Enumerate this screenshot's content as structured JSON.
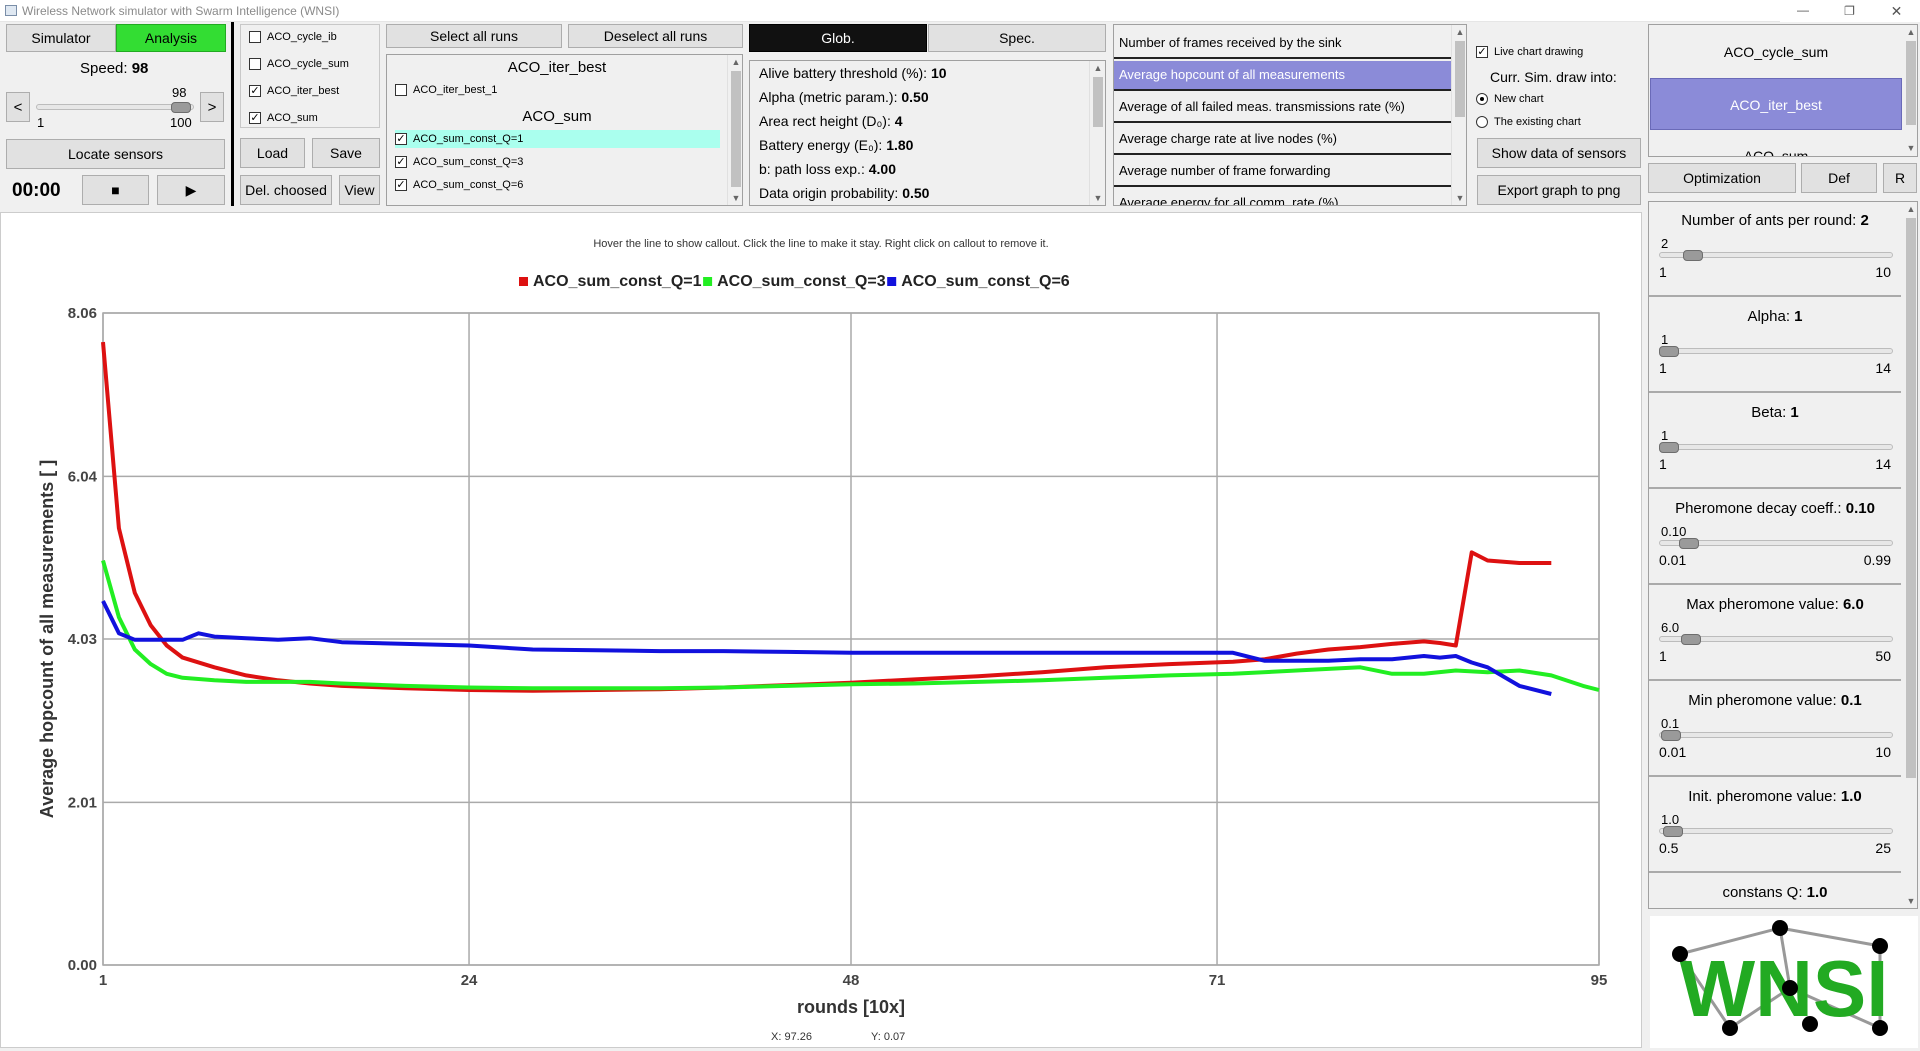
{
  "window": {
    "title": "Wireless Network simulator with Swarm Intelligence (WNSI)"
  },
  "tabs": {
    "simulator": "Simulator",
    "analysis": "Analysis"
  },
  "speed": {
    "label": "Speed:",
    "value": "98",
    "current": "98",
    "min": "1",
    "max": "100",
    "level": 0.98,
    "dec": "<",
    "inc": ">"
  },
  "buttons": {
    "locate": "Locate sensors",
    "timer": "00:00",
    "stop": "■",
    "play": "▶",
    "load": "Load",
    "save": "Save",
    "delete": "Del. choosed",
    "view": "View",
    "select_all": "Select all runs",
    "deselect_all": "Deselect all runs",
    "glob": "Glob.",
    "spec": "Spec.",
    "show_data": "Show data of sensors",
    "export": "Export graph to png",
    "optimization": "Optimization",
    "def": "Def",
    "r": "R"
  },
  "algo_checks": [
    {
      "label": "ACO_cycle_ib",
      "checked": false
    },
    {
      "label": "ACO_cycle_sum",
      "checked": false
    },
    {
      "label": "ACO_iter_best",
      "checked": true
    },
    {
      "label": "ACO_sum",
      "checked": true
    }
  ],
  "runs": {
    "groups": [
      {
        "header": "ACO_iter_best",
        "items": [
          {
            "label": "ACO_iter_best_1",
            "checked": false,
            "highlight": false
          }
        ]
      },
      {
        "header": "ACO_sum",
        "items": [
          {
            "label": "ACO_sum_const_Q=1",
            "checked": true,
            "highlight": true
          },
          {
            "label": "ACO_sum_const_Q=3",
            "checked": true,
            "highlight": false
          },
          {
            "label": "ACO_sum_const_Q=6",
            "checked": true,
            "highlight": false
          }
        ]
      }
    ]
  },
  "params": [
    {
      "name": "Alive battery threshold (%): ",
      "value": "10"
    },
    {
      "name": "Alpha (metric param.): ",
      "value": "0.50"
    },
    {
      "name": "Area rect height (D₀): ",
      "value": "4"
    },
    {
      "name": "Battery energy (E₀): ",
      "value": "1.80"
    },
    {
      "name": "b: path loss exp.: ",
      "value": "4.00"
    },
    {
      "name": "Data origin probability: ",
      "value": "0.50"
    }
  ],
  "measurements": [
    {
      "label": "Number of frames received by the sink",
      "selected": false
    },
    {
      "label": "Average hopcount of all measurements",
      "selected": true
    },
    {
      "label": "Average of all failed meas. transmissions rate (%)",
      "selected": false
    },
    {
      "label": "Average charge rate at live nodes (%)",
      "selected": false
    },
    {
      "label": "Average number of frame forwarding",
      "selected": false
    },
    {
      "label": "Average energy for all comm. rate (%)",
      "selected": false
    }
  ],
  "chart_opts": {
    "live": "Live chart drawing",
    "live_checked": true,
    "draw_into": "Curr. Sim. draw into:",
    "new_chart": "New chart",
    "existing": "The existing chart",
    "selected": "new"
  },
  "algo_list": [
    {
      "label": "ACO_cycle_sum",
      "selected": false
    },
    {
      "label": "ACO_iter_best",
      "selected": true
    },
    {
      "label": "ACO_sum",
      "selected": false
    }
  ],
  "right_params": [
    {
      "title": "Number of ants per round: ",
      "value": "2",
      "cur": "2",
      "min": "1",
      "max": "10",
      "level": 0.111
    },
    {
      "title": "Alpha: ",
      "value": "1",
      "cur": "1",
      "min": "1",
      "max": "14",
      "level": 0
    },
    {
      "title": "Beta: ",
      "value": "1",
      "cur": "1",
      "min": "1",
      "max": "14",
      "level": 0
    },
    {
      "title": "Pheromone decay coeff.: ",
      "value": "0.10",
      "cur": "0.10",
      "min": "0.01",
      "max": "0.99",
      "level": 0.092
    },
    {
      "title": "Max pheromone value: ",
      "value": "6.0",
      "cur": "6.0",
      "min": "1",
      "max": "50",
      "level": 0.102
    },
    {
      "title": "Min pheromone value: ",
      "value": "0.1",
      "cur": "0.1",
      "min": "0.01",
      "max": "10",
      "level": 0.009
    },
    {
      "title": "Init. pheromone value: ",
      "value": "1.0",
      "cur": "1.0",
      "min": "0.5",
      "max": "25",
      "level": 0.02
    },
    {
      "title": "constans Q: ",
      "value": "1.0"
    }
  ],
  "logo": {
    "text": "WNSI",
    "color": "#22aa22"
  },
  "chart_data": {
    "type": "line",
    "hint": "Hover the line to show callout. Click the line to make it stay. Right click on callout to remove it.",
    "xlabel": "rounds [10x]",
    "ylabel": "Average hopcount of all measurements [ ]",
    "xlim": [
      1,
      95
    ],
    "ylim": [
      0,
      8.06
    ],
    "xticks": [
      "1",
      "24",
      "48",
      "71",
      "95"
    ],
    "yticks": [
      "0.00",
      "2.01",
      "4.03",
      "6.04",
      "8.06"
    ],
    "grid": true,
    "legend": "top-center",
    "cursor": {
      "x": "X: 97.26",
      "y": "Y: 0.07"
    },
    "series": [
      {
        "name": "ACO_sum_const_Q=1",
        "color": "#dd1111",
        "x": [
          1,
          2,
          3,
          4,
          5,
          6,
          8,
          10,
          12,
          14,
          16,
          20,
          24,
          28,
          32,
          36,
          40,
          44,
          48,
          52,
          56,
          60,
          64,
          68,
          72,
          74,
          76,
          78,
          80,
          82,
          84,
          85,
          86,
          87,
          88,
          90,
          92
        ],
        "y": [
          7.7,
          5.4,
          4.6,
          4.2,
          3.95,
          3.8,
          3.68,
          3.58,
          3.52,
          3.48,
          3.45,
          3.42,
          3.4,
          3.39,
          3.4,
          3.41,
          3.43,
          3.46,
          3.49,
          3.53,
          3.57,
          3.62,
          3.68,
          3.72,
          3.75,
          3.78,
          3.85,
          3.9,
          3.93,
          3.97,
          4.0,
          3.98,
          3.95,
          5.1,
          5.0,
          4.97,
          4.97
        ]
      },
      {
        "name": "ACO_sum_const_Q=3",
        "color": "#22ee22",
        "x": [
          1,
          2,
          3,
          4,
          5,
          6,
          8,
          10,
          12,
          14,
          16,
          20,
          24,
          28,
          32,
          36,
          40,
          44,
          48,
          52,
          56,
          60,
          64,
          68,
          72,
          76,
          80,
          82,
          84,
          86,
          88,
          90,
          92,
          94,
          95
        ],
        "y": [
          5.0,
          4.3,
          3.9,
          3.72,
          3.6,
          3.55,
          3.52,
          3.5,
          3.5,
          3.5,
          3.48,
          3.45,
          3.43,
          3.42,
          3.42,
          3.42,
          3.43,
          3.45,
          3.47,
          3.48,
          3.5,
          3.52,
          3.55,
          3.58,
          3.6,
          3.64,
          3.68,
          3.6,
          3.6,
          3.64,
          3.62,
          3.64,
          3.58,
          3.45,
          3.4
        ]
      },
      {
        "name": "ACO_sum_const_Q=6",
        "color": "#1111dd",
        "x": [
          1,
          2,
          3,
          4,
          5,
          6,
          7,
          8,
          10,
          12,
          14,
          16,
          20,
          24,
          28,
          32,
          36,
          40,
          44,
          48,
          52,
          56,
          60,
          64,
          68,
          72,
          74,
          76,
          78,
          80,
          82,
          84,
          85,
          86,
          87,
          88,
          90,
          92
        ],
        "y": [
          4.5,
          4.1,
          4.02,
          4.02,
          4.02,
          4.02,
          4.1,
          4.06,
          4.04,
          4.02,
          4.04,
          3.99,
          3.97,
          3.95,
          3.9,
          3.89,
          3.88,
          3.88,
          3.87,
          3.86,
          3.86,
          3.86,
          3.86,
          3.86,
          3.86,
          3.86,
          3.76,
          3.76,
          3.76,
          3.78,
          3.78,
          3.82,
          3.8,
          3.82,
          3.74,
          3.68,
          3.45,
          3.35
        ]
      }
    ]
  }
}
